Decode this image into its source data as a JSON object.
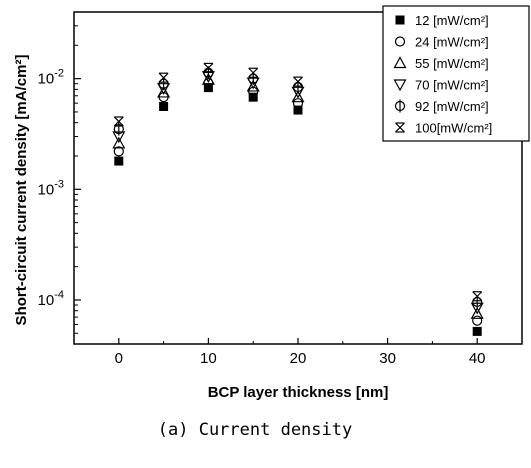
{
  "chart_data": {
    "type": "scatter",
    "title": "",
    "xlabel": "BCP layer thickness [nm]",
    "ylabel": "Short-circuit current density [mA/cm²]",
    "caption": "(a) Current density",
    "xlim": [
      -5,
      45
    ],
    "ylim": [
      4e-05,
      0.04
    ],
    "yscale": "log",
    "xticks": [
      0,
      10,
      20,
      30,
      40
    ],
    "yticks": [
      {
        "value": 0.01,
        "base": "10",
        "exp": "-2"
      },
      {
        "value": 0.001,
        "base": "10",
        "exp": "-3"
      },
      {
        "value": 0.0001,
        "base": "10",
        "exp": "-4"
      }
    ],
    "legend_position": "top-right",
    "grid": false,
    "x": [
      0,
      5,
      10,
      15,
      20,
      40
    ],
    "series": [
      {
        "name": "12 [mW/cm²]",
        "marker": "filled-square",
        "values": [
          0.0018,
          0.0056,
          0.0083,
          0.0068,
          0.0052,
          5.2e-05
        ]
      },
      {
        "name": "24 [mW/cm²]",
        "marker": "open-circle",
        "values": [
          0.0022,
          0.0068,
          0.0091,
          0.0076,
          0.006,
          6.5e-05
        ]
      },
      {
        "name": "55 [mW/cm²]",
        "marker": "open-triangle-up",
        "values": [
          0.0026,
          0.0075,
          0.0098,
          0.0085,
          0.0068,
          7.5e-05
        ]
      },
      {
        "name": "70 [mW/cm²]",
        "marker": "open-triangle-down",
        "values": [
          0.003,
          0.0082,
          0.0105,
          0.0092,
          0.0076,
          8.5e-05
        ]
      },
      {
        "name": "92 [mW/cm²]",
        "marker": "circle-cross",
        "values": [
          0.0035,
          0.009,
          0.0113,
          0.01,
          0.0084,
          9.6e-05
        ]
      },
      {
        "name": "100[mW/cm²]",
        "marker": "x-box",
        "values": [
          0.0041,
          0.0102,
          0.0125,
          0.0113,
          0.0094,
          0.000108
        ]
      }
    ]
  }
}
